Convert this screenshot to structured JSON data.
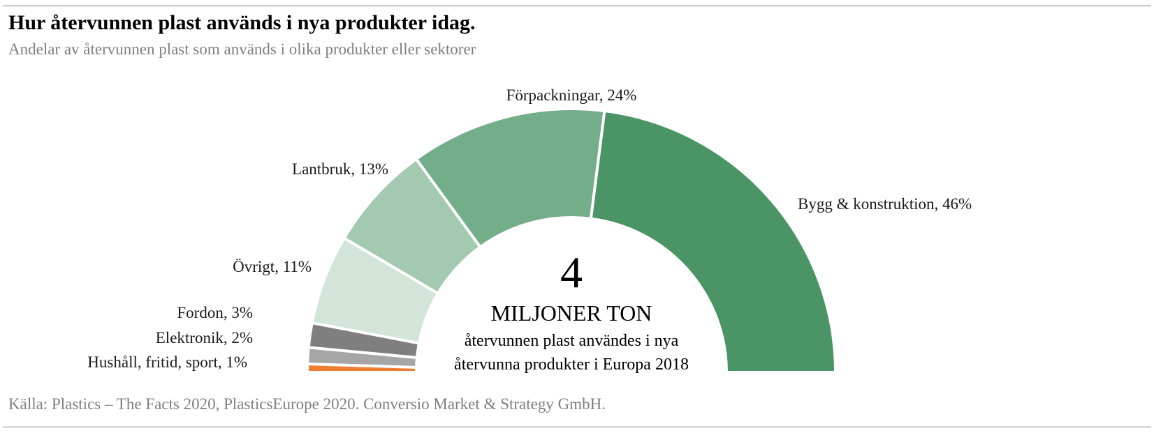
{
  "header": {
    "title": "Hur återvunnen plast används i nya produkter idag.",
    "subtitle": "Andelar av återvunnen plast som används i olika produkter eller sektorer"
  },
  "center": {
    "value": "4",
    "unit": "MILJONER TON",
    "line1": "återvunnen plast användes i nya",
    "line2": "återvunna produkter i Europa 2018"
  },
  "source": "Källa: Plastics – The Facts 2020, PlasticsEurope 2020. Conversio Market & Strategy GmbH.",
  "chart_data": {
    "type": "pie",
    "variant": "half-donut",
    "title": "Hur återvunnen plast används i nya produkter idag.",
    "subtitle": "Andelar av återvunnen plast som används i olika produkter eller sektorer",
    "unit": "%",
    "order": "counter-clockwise from right",
    "slices": [
      {
        "name": "Bygg & konstruktion",
        "value": 46,
        "label": "Bygg & konstruktion, 46%",
        "color": "#4a9466"
      },
      {
        "name": "Förpackningar",
        "value": 24,
        "label": "Förpackningar, 24%",
        "color": "#74ad8a"
      },
      {
        "name": "Lantbruk",
        "value": 13,
        "label": "Lantbruk, 13%",
        "color": "#a3c9b0"
      },
      {
        "name": "Övrigt",
        "value": 11,
        "label": "Övrigt, 11%",
        "color": "#d2e5d8"
      },
      {
        "name": "Fordon",
        "value": 3,
        "label": "Fordon, 3%",
        "color": "#7f7f7f"
      },
      {
        "name": "Elektronik",
        "value": 2,
        "label": "Elektronik, 2%",
        "color": "#a6a6a6"
      },
      {
        "name": "Hushåll, fritid, sport",
        "value": 1,
        "label": "Hushåll, fritid, sport, 1%",
        "color": "#ed7d31"
      }
    ],
    "legend": "none"
  }
}
